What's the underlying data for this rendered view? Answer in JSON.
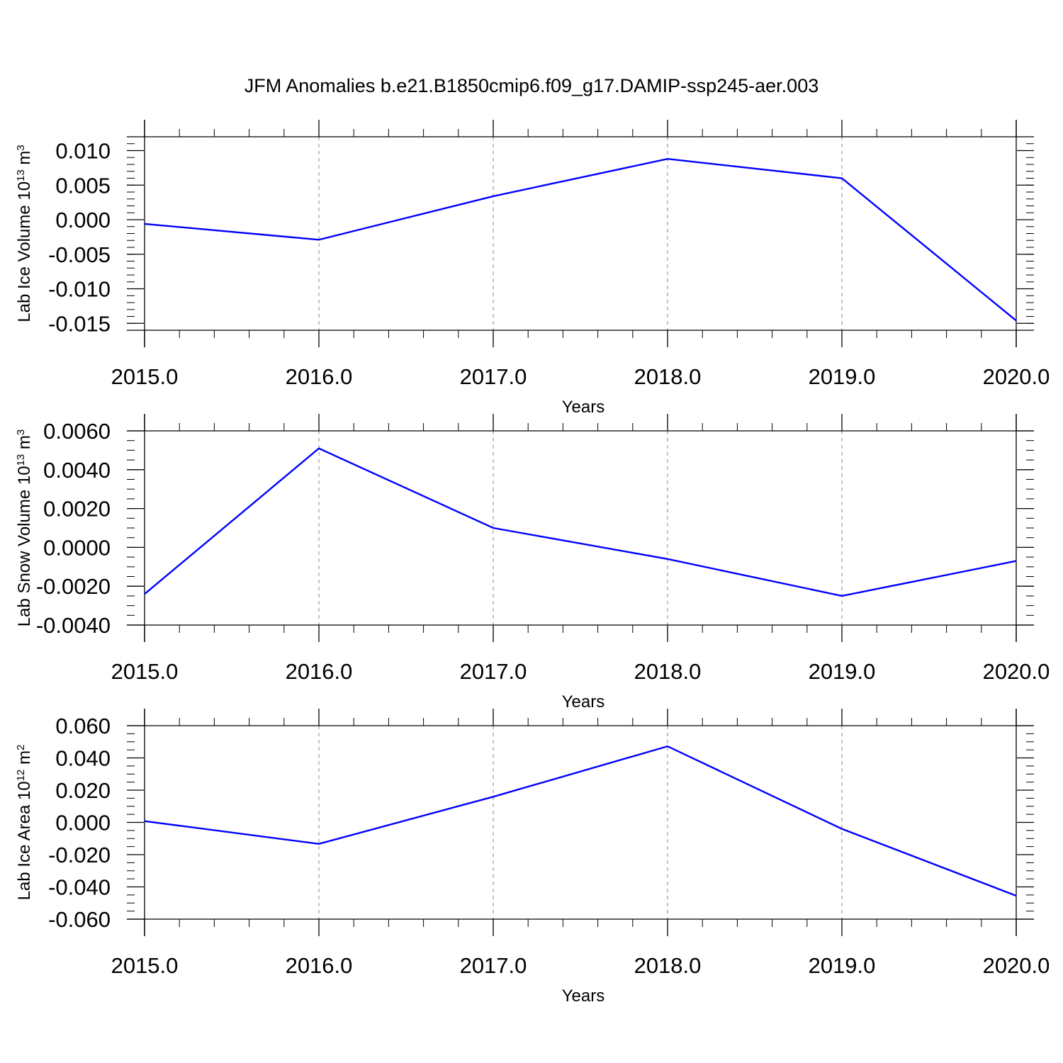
{
  "figure": {
    "title": "JFM Anomalies b.e21.B1850cmip6.f09_g17.DAMIP-ssp245-aer.003"
  },
  "chart_data": [
    {
      "type": "line",
      "title": "",
      "xlabel": "Years",
      "ylabel": "Lab Ice Volume 10",
      "ylabel_exponent": "13",
      "ylabel_unit": " m",
      "ylabel_unit_exponent": "3",
      "x": [
        2015,
        2016,
        2017,
        2018,
        2019,
        2020
      ],
      "xticks": [
        "2015.0",
        "2016.0",
        "2017.0",
        "2018.0",
        "2019.0",
        "2020.0"
      ],
      "xlim": [
        2015,
        2020
      ],
      "ylim": [
        -0.016,
        0.012
      ],
      "yticks": [
        0.01,
        0.005,
        0.0,
        -0.005,
        -0.01,
        -0.015
      ],
      "ytick_labels": [
        "0.010",
        "0.005",
        "0.000",
        "-0.005",
        "-0.010",
        "-0.015"
      ],
      "grid": "vertical dashed",
      "series": [
        {
          "values": [
            -0.0006,
            -0.0029,
            0.0034,
            0.0088,
            0.006,
            -0.0146
          ],
          "color": "#0000ff"
        }
      ]
    },
    {
      "type": "line",
      "title": "",
      "xlabel": "Years",
      "ylabel": "Lab Snow Volume 10",
      "ylabel_exponent": "13",
      "ylabel_unit": " m",
      "ylabel_unit_exponent": "3",
      "x": [
        2015,
        2016,
        2017,
        2018,
        2019,
        2020
      ],
      "xticks": [
        "2015.0",
        "2016.0",
        "2017.0",
        "2018.0",
        "2019.0",
        "2020.0"
      ],
      "xlim": [
        2015,
        2020
      ],
      "ylim": [
        -0.004,
        0.007
      ],
      "yticks": [
        0.006,
        0.004,
        0.002,
        0.0,
        -0.002,
        -0.004
      ],
      "ytick_labels": [
        "0.0060",
        "0.0040",
        "0.0020",
        "0.0000",
        "-0.0020",
        "-0.0040"
      ],
      "grid": "vertical dashed",
      "series": [
        {
          "values": [
            -0.0024,
            0.0051,
            0.001,
            -0.0006,
            -0.0025,
            -0.0007
          ],
          "color": "#0000ff"
        }
      ]
    },
    {
      "type": "line",
      "title": "",
      "xlabel": "Years",
      "ylabel": "Lab Ice Area 10",
      "ylabel_exponent": "12",
      "ylabel_unit": " m",
      "ylabel_unit_exponent": "2",
      "x": [
        2015,
        2016,
        2017,
        2018,
        2019,
        2020
      ],
      "xticks": [
        "2015.0",
        "2016.0",
        "2017.0",
        "2018.0",
        "2019.0",
        "2020.0"
      ],
      "xlim": [
        2015,
        2020
      ],
      "ylim": [
        -0.06,
        0.06
      ],
      "yticks": [
        0.06,
        0.04,
        0.02,
        0.0,
        -0.02,
        -0.04,
        -0.06
      ],
      "ytick_labels": [
        "0.060",
        "0.040",
        "0.020",
        "0.000",
        "-0.020",
        "-0.040",
        "-0.060"
      ],
      "grid": "vertical dashed",
      "series": [
        {
          "values": [
            0.0008,
            -0.0133,
            0.0159,
            0.0472,
            -0.004,
            -0.0455
          ],
          "color": "#0000ff"
        }
      ]
    }
  ]
}
